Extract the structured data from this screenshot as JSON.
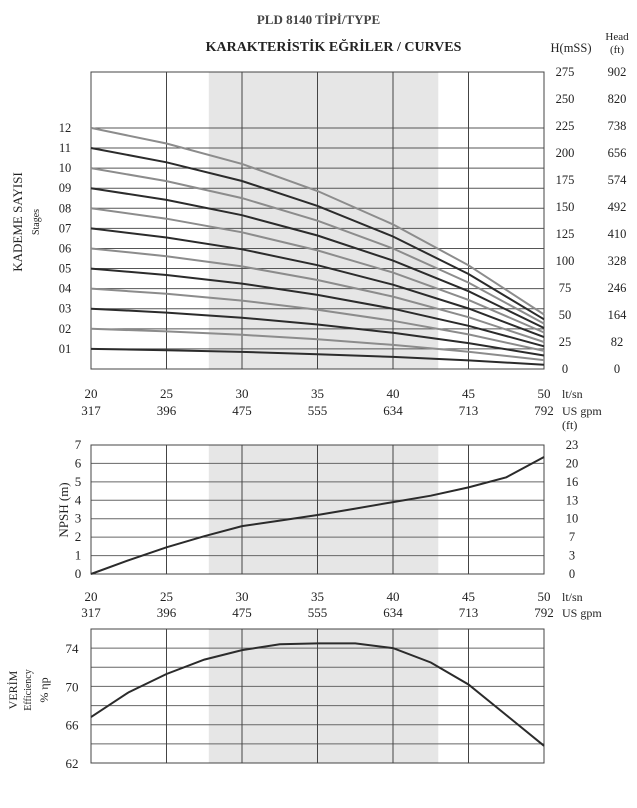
{
  "header": {
    "title": "PLD 8140 TİPİ/TYPE",
    "subtitle": "KARAKTERİSTİK EĞRİLER / CURVES"
  },
  "colors": {
    "dark": "#2b2b2b",
    "light": "#8c8c8c",
    "band": "#e6e6e6",
    "grid": "#444444"
  },
  "x_axis": {
    "lt_sn": [
      20,
      25,
      30,
      35,
      40,
      45,
      50
    ],
    "us_gpm": [
      317,
      396,
      475,
      555,
      634,
      713,
      792
    ],
    "unit_lt": "lt/sn",
    "unit_gpm": "US gpm",
    "shaded_range": [
      27.8,
      43
    ]
  },
  "chart_data": [
    {
      "type": "line",
      "id": "head",
      "ylabel": "KADEME SAYISI",
      "ylabel_sub": "Stages",
      "right_unit_m": "H(mSS)",
      "right_unit_ft_1": "Head",
      "right_unit_ft_2": "(ft)",
      "ylim": [
        0,
        275
      ],
      "right_m_ticks": [
        275,
        250,
        225,
        200,
        175,
        150,
        125,
        100,
        75,
        50,
        25,
        0
      ],
      "right_ft_ticks": [
        902,
        820,
        738,
        656,
        574,
        492,
        410,
        328,
        246,
        164,
        82,
        0
      ],
      "x": [
        20,
        25,
        30,
        35,
        40,
        45,
        50
      ],
      "series": [
        {
          "name": "01",
          "values": [
            18.6,
            17.4,
            15.8,
            13.7,
            11.2,
            8.0,
            4.0
          ]
        },
        {
          "name": "02",
          "values": [
            37.2,
            34.8,
            31.7,
            27.5,
            22.3,
            16.0,
            8.2
          ]
        },
        {
          "name": "03",
          "values": [
            55.8,
            52.2,
            47.5,
            41.2,
            33.5,
            24.0,
            12.5
          ]
        },
        {
          "name": "04",
          "values": [
            74.4,
            69.6,
            63.3,
            54.9,
            44.6,
            32.0,
            16.8
          ]
        },
        {
          "name": "05",
          "values": [
            93.0,
            87.0,
            79.1,
            68.6,
            55.8,
            40.0,
            21.0
          ]
        },
        {
          "name": "06",
          "values": [
            111.6,
            104.4,
            95.0,
            82.4,
            67.0,
            48.0,
            25.0
          ]
        },
        {
          "name": "07",
          "values": [
            130.2,
            121.8,
            110.8,
            96.1,
            78.1,
            56.0,
            29.5
          ]
        },
        {
          "name": "08",
          "values": [
            148.8,
            139.2,
            126.6,
            109.8,
            89.3,
            64.0,
            33.8
          ]
        },
        {
          "name": "09",
          "values": [
            167.4,
            156.6,
            142.4,
            123.6,
            100.4,
            72.0,
            38.0
          ]
        },
        {
          "name": "10",
          "values": [
            186.0,
            174.0,
            158.2,
            137.3,
            111.6,
            80.0,
            42.0
          ]
        },
        {
          "name": "11",
          "values": [
            204.6,
            191.4,
            174.1,
            151.0,
            122.7,
            88.0,
            46.0
          ]
        },
        {
          "name": "12",
          "values": [
            223.2,
            208.8,
            189.9,
            164.8,
            133.9,
            96.0,
            50.5
          ]
        }
      ]
    },
    {
      "type": "line",
      "id": "npsh",
      "ylabel": "NPSH (m)",
      "right_unit": "(ft)",
      "ylim": [
        0,
        7
      ],
      "left_ticks": [
        0,
        1,
        2,
        3,
        4,
        5,
        6,
        7
      ],
      "right_ticks": [
        {
          "label": "23",
          "m": 7
        },
        {
          "label": "20",
          "m": 6
        },
        {
          "label": "16",
          "m": 5
        },
        {
          "label": "13",
          "m": 4
        },
        {
          "label": "10",
          "m": 3
        },
        {
          "label": "7",
          "m": 2
        },
        {
          "label": "3",
          "m": 1
        },
        {
          "label": "0",
          "m": 0
        }
      ],
      "x": [
        20,
        22.5,
        25,
        27.5,
        30,
        32.5,
        35,
        37.5,
        40,
        42.5,
        45,
        47.5,
        50
      ],
      "values": [
        0.0,
        0.75,
        1.45,
        2.05,
        2.6,
        2.9,
        3.2,
        3.55,
        3.9,
        4.25,
        4.7,
        5.25,
        6.35
      ]
    },
    {
      "type": "line",
      "id": "efficiency",
      "ylabel": "VERİM",
      "ylabel_sub": "Efficiency",
      "ylabel_unit": "% ηp",
      "ylim": [
        62,
        76
      ],
      "left_ticks": [
        62,
        66,
        70,
        74
      ],
      "x": [
        20,
        22.5,
        25,
        27.5,
        30,
        32.5,
        35,
        37.5,
        40,
        42.5,
        45,
        47.5,
        50
      ],
      "values": [
        66.8,
        69.4,
        71.3,
        72.8,
        73.8,
        74.4,
        74.5,
        74.5,
        74.0,
        72.5,
        70.2,
        67.0,
        63.8
      ]
    }
  ]
}
